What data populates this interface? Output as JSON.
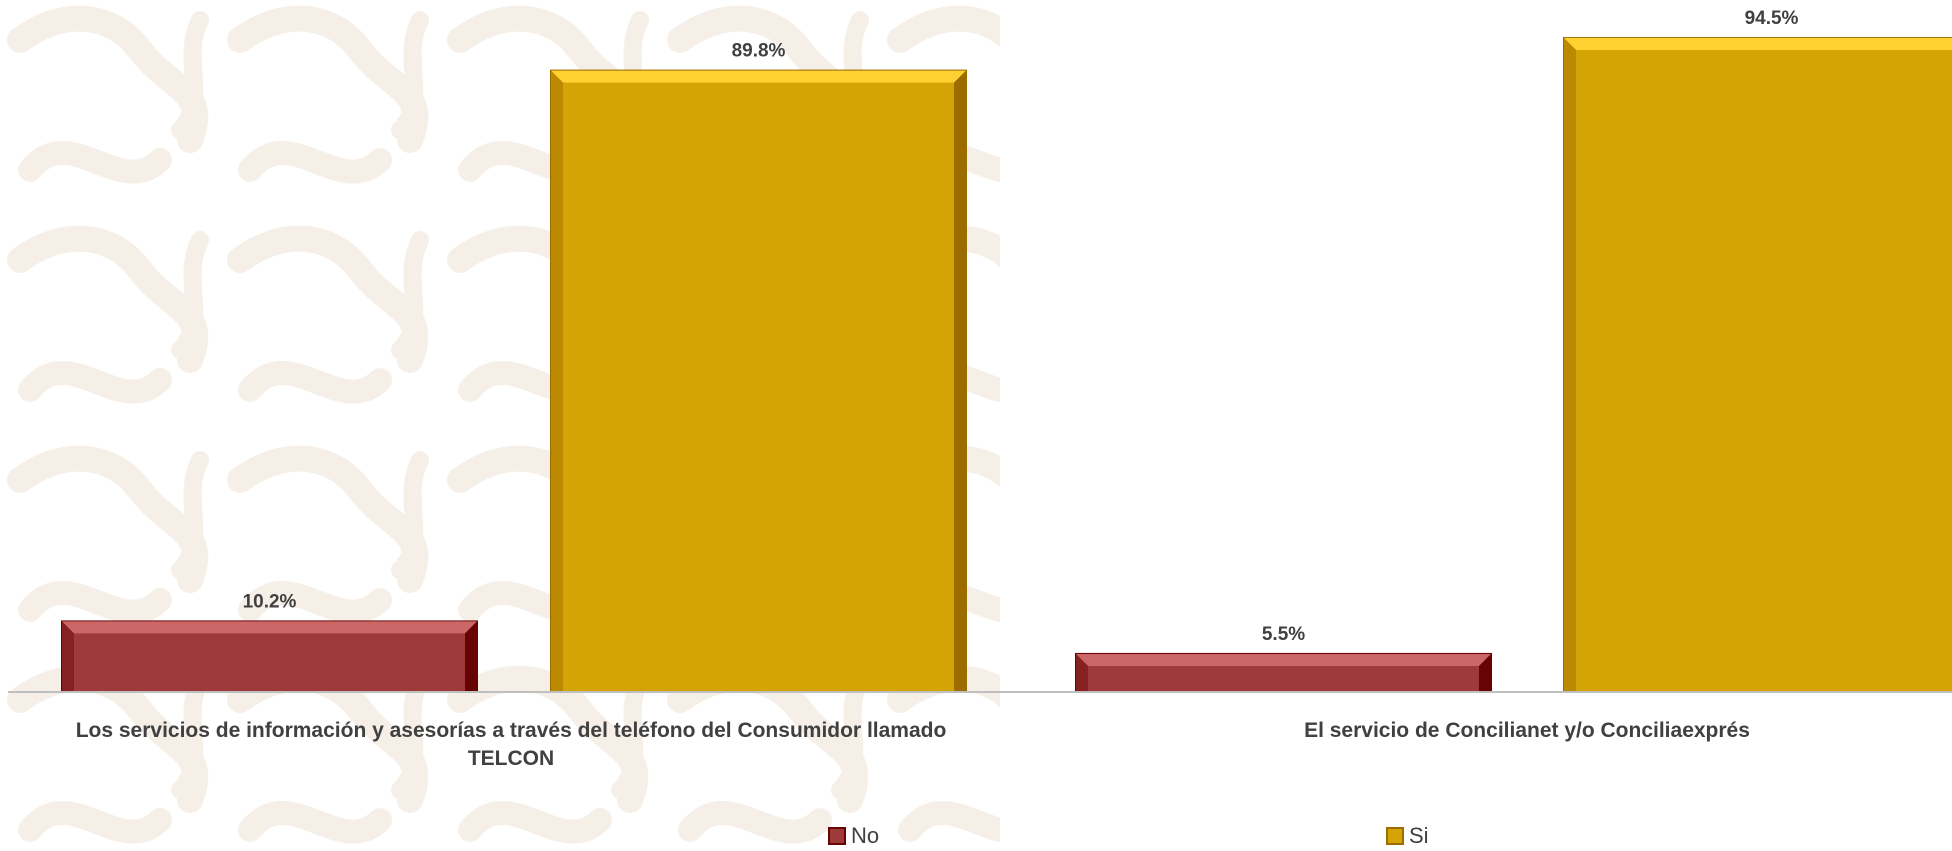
{
  "chart_data": {
    "type": "bar",
    "categories": [
      "Los servicios de información y asesorías a través del teléfono del Consumidor llamado TELCON",
      "El servicio de Concilianet y/o Conciliaexprés"
    ],
    "series": [
      {
        "name": "No",
        "values": [
          10.2,
          5.5
        ],
        "labels": [
          "10.2%",
          "5.5%"
        ],
        "color": "#9e3a3a"
      },
      {
        "name": "Si",
        "values": [
          89.8,
          94.5
        ],
        "labels": [
          "89.8%",
          "94.5%"
        ],
        "color": "#d4a305"
      }
    ],
    "ylim": [
      0,
      100
    ],
    "title": "",
    "xlabel": "",
    "ylabel": "",
    "grid": false,
    "legend_position": "bottom",
    "background_watermark_color": "#f3ece4"
  }
}
